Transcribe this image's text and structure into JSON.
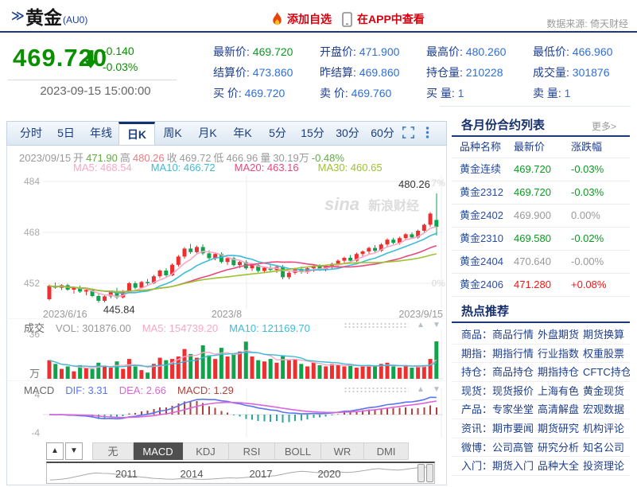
{
  "header": {
    "market_prefix": "≫",
    "title": "黄金",
    "symbol": "(AU0)",
    "add_watchlist": "添加自选",
    "view_in_app": "在APP中查看",
    "data_source": "数据来源: 倚天财经"
  },
  "quote": {
    "price": "469.720",
    "change": "-0.140",
    "change_pct": "-0.03%",
    "timestamp": "2023-09-15 15:00:00",
    "fields": [
      {
        "label": "最新价",
        "value": "469.720",
        "green": true
      },
      {
        "label": "开盘价",
        "value": "471.900"
      },
      {
        "label": "最高价",
        "value": "480.260"
      },
      {
        "label": "最低价",
        "value": "466.960"
      },
      {
        "label": "结算价",
        "value": "473.860"
      },
      {
        "label": "昨结算",
        "value": "469.860"
      },
      {
        "label": "持仓量",
        "value": "210228"
      },
      {
        "label": "成交量",
        "value": "301876"
      },
      {
        "label": "买 价",
        "value": "469.720"
      },
      {
        "label": "卖 价",
        "value": "469.760"
      },
      {
        "label": "买 量",
        "value": "1"
      },
      {
        "label": "卖 量",
        "value": "1"
      }
    ]
  },
  "chart_tabs": {
    "items": [
      "分时",
      "5日",
      "年线",
      "日K",
      "周K",
      "月K",
      "年K",
      "5分",
      "15分",
      "30分",
      "60分"
    ],
    "active": "日K"
  },
  "kline_info": {
    "segments": [
      {
        "t": "2023/09/15",
        "c": "#9a9a9a"
      },
      {
        "t": "开",
        "c": "#9a9a9a"
      },
      {
        "t": "471.90",
        "c": "#5fae3e"
      },
      {
        "t": "高",
        "c": "#9a9a9a"
      },
      {
        "t": "480.26",
        "c": "#f07a7a"
      },
      {
        "t": "收",
        "c": "#9a9a9a"
      },
      {
        "t": "469.72",
        "c": "#9a9a9a"
      },
      {
        "t": "低",
        "c": "#9a9a9a"
      },
      {
        "t": "466.96",
        "c": "#9a9a9a"
      },
      {
        "t": "量",
        "c": "#9a9a9a"
      },
      {
        "t": "30.19万",
        "c": "#9a9a9a"
      },
      {
        "t": "-0.48%",
        "c": "#5fae3e"
      }
    ],
    "ma_labels": [
      {
        "t": "MA5: 468.54",
        "c": "#f7a8c6"
      },
      {
        "t": "MA10: 466.72",
        "c": "#3dbcd8"
      },
      {
        "t": "MA20: 463.16",
        "c": "#e8487e"
      },
      {
        "t": "MA30: 460.65",
        "c": "#9cc22e"
      }
    ]
  },
  "chart_data": {
    "type": "candlestick",
    "title": "黄金(AU0) 日K",
    "y_ticks": [
      484,
      468,
      452
    ],
    "x_labels": [
      "2023/6/16",
      "2023/8",
      "2023/9/15"
    ],
    "right_axis_labels": [
      "7%",
      "0%"
    ],
    "high_label": "480.26",
    "low_label": "445.84",
    "watermark": "sina 新浪财经",
    "candles": [
      [
        447.0,
        451.6,
        446.6,
        451.2
      ],
      [
        451.2,
        452.2,
        450.2,
        450.6
      ],
      [
        450.6,
        451.8,
        449.9,
        451.4
      ],
      [
        451.4,
        451.9,
        449.6,
        450.0
      ],
      [
        450.0,
        451.0,
        448.8,
        450.6
      ],
      [
        450.6,
        451.2,
        449.0,
        449.4
      ],
      [
        449.4,
        450.4,
        448.2,
        449.9
      ],
      [
        449.9,
        450.3,
        447.6,
        448.0
      ],
      [
        448.0,
        448.6,
        445.84,
        446.5
      ],
      [
        446.5,
        448.3,
        446.0,
        447.9
      ],
      [
        447.9,
        449.6,
        447.3,
        449.2
      ],
      [
        449.2,
        450.6,
        447.0,
        447.6
      ],
      [
        447.6,
        449.9,
        447.2,
        449.5
      ],
      [
        449.5,
        452.4,
        449.0,
        452.0
      ],
      [
        452.0,
        452.6,
        450.1,
        450.6
      ],
      [
        450.6,
        452.8,
        450.2,
        452.4
      ],
      [
        452.4,
        453.4,
        451.4,
        452.0
      ],
      [
        452.0,
        454.6,
        451.8,
        454.2
      ],
      [
        454.2,
        456.4,
        453.6,
        456.0
      ],
      [
        456.0,
        456.8,
        454.0,
        454.5
      ],
      [
        454.5,
        458.2,
        454.2,
        457.8
      ],
      [
        457.8,
        460.9,
        457.2,
        460.4
      ],
      [
        460.4,
        463.4,
        459.8,
        462.9
      ],
      [
        462.9,
        464.4,
        461.2,
        461.8
      ],
      [
        461.8,
        463.9,
        461.0,
        463.4
      ],
      [
        463.4,
        464.2,
        460.9,
        461.4
      ],
      [
        461.4,
        462.4,
        459.4,
        459.9
      ],
      [
        459.9,
        461.6,
        459.2,
        461.2
      ],
      [
        461.2,
        461.8,
        458.2,
        458.7
      ],
      [
        458.7,
        460.3,
        457.7,
        459.9
      ],
      [
        459.9,
        460.4,
        457.2,
        457.7
      ],
      [
        457.7,
        459.1,
        456.7,
        458.7
      ],
      [
        458.7,
        459.2,
        456.2,
        456.7
      ],
      [
        456.7,
        458.1,
        455.9,
        457.7
      ],
      [
        457.7,
        458.2,
        455.4,
        455.9
      ],
      [
        455.9,
        457.3,
        455.1,
        456.9
      ],
      [
        456.9,
        457.8,
        455.5,
        456.2
      ],
      [
        456.2,
        457.6,
        455.2,
        457.2
      ],
      [
        457.2,
        457.7,
        453.3,
        453.9
      ],
      [
        453.9,
        455.7,
        453.3,
        455.3
      ],
      [
        455.3,
        456.9,
        454.7,
        456.5
      ],
      [
        456.5,
        457.3,
        455.0,
        455.5
      ],
      [
        455.5,
        457.1,
        455.0,
        456.7
      ],
      [
        456.7,
        457.9,
        455.6,
        457.5
      ],
      [
        457.5,
        458.0,
        455.9,
        456.4
      ],
      [
        456.4,
        457.9,
        455.8,
        457.5
      ],
      [
        457.5,
        458.5,
        456.4,
        458.1
      ],
      [
        458.1,
        459.5,
        457.3,
        459.1
      ],
      [
        459.1,
        460.4,
        458.0,
        460.0
      ],
      [
        460.0,
        460.9,
        458.6,
        459.1
      ],
      [
        459.1,
        461.6,
        458.8,
        461.2
      ],
      [
        461.2,
        462.4,
        460.2,
        462.0
      ],
      [
        462.0,
        463.5,
        461.2,
        463.1
      ],
      [
        463.1,
        464.0,
        461.7,
        462.2
      ],
      [
        462.2,
        464.6,
        461.9,
        464.2
      ],
      [
        464.2,
        466.1,
        463.6,
        465.7
      ],
      [
        465.7,
        466.3,
        464.2,
        464.7
      ],
      [
        464.7,
        466.6,
        464.1,
        466.2
      ],
      [
        466.2,
        467.8,
        465.5,
        467.4
      ],
      [
        467.4,
        468.0,
        465.9,
        466.4
      ],
      [
        466.4,
        468.9,
        466.0,
        468.5
      ],
      [
        468.5,
        470.8,
        467.9,
        470.4
      ],
      [
        470.4,
        474.4,
        469.8,
        473.9
      ],
      [
        471.9,
        480.26,
        466.96,
        469.72
      ]
    ],
    "volume_values": [
      15,
      12,
      8,
      10,
      6,
      11,
      9,
      8,
      13,
      10,
      9,
      14,
      8,
      16,
      10,
      7,
      5,
      12,
      17,
      15,
      16,
      18,
      24,
      20,
      17,
      27,
      19,
      16,
      25,
      18,
      20,
      22,
      30,
      18,
      15,
      14,
      16,
      13,
      19,
      15,
      16,
      12,
      10,
      13,
      11,
      10,
      12,
      11,
      10,
      11,
      9,
      10,
      11,
      10,
      12,
      13,
      10,
      9,
      10,
      9,
      10,
      11,
      16,
      30.19
    ]
  },
  "volume_pane": {
    "segments": [
      {
        "t": "成交",
        "c": "#666666"
      },
      {
        "t": "VOL: 301876.00",
        "c": "#999999"
      },
      {
        "t": "MA5: 154739.20",
        "c": "#f7a8c6"
      },
      {
        "t": "MA10: 121169.70",
        "c": "#3dbcd8"
      }
    ],
    "y_tick": "36",
    "unit": "万"
  },
  "macd_pane": {
    "segments": [
      {
        "t": "MACD",
        "c": "#666666"
      },
      {
        "t": "DIF: 3.31",
        "c": "#5b74f0"
      },
      {
        "t": "DEA: 2.66",
        "c": "#da66da"
      },
      {
        "t": "MACD: 1.29",
        "c": "#b0413a"
      }
    ],
    "y_ticks": [
      "4",
      "-4"
    ]
  },
  "indicator_tabs": {
    "items": [
      "无",
      "MACD",
      "KDJ",
      "RSI",
      "BOLL",
      "WR",
      "DMI"
    ],
    "active": "MACD"
  },
  "timeline": {
    "years": [
      "2011",
      "2014",
      "2017",
      "2020"
    ],
    "year_x": [
      100,
      182,
      269,
      355
    ],
    "spark": [
      18,
      20,
      24,
      30,
      38,
      46,
      55,
      60,
      58,
      57,
      54,
      48,
      44,
      40,
      36,
      33,
      28,
      26,
      24,
      23,
      25,
      27,
      25,
      23,
      22,
      24,
      26,
      29,
      31,
      29,
      32,
      35,
      37,
      39,
      41,
      44,
      52,
      60,
      66,
      70,
      68,
      64,
      62,
      65,
      68,
      66,
      63,
      65,
      70,
      76,
      83,
      86,
      82,
      79,
      77,
      81,
      87,
      91,
      94,
      97
    ]
  },
  "contracts": {
    "title": "各月份合约列表",
    "more": "更多>",
    "headers": [
      "品种名称",
      "最新价",
      "涨跌幅"
    ],
    "rows": [
      {
        "name": "黄金连续",
        "price": "469.720",
        "pct": "-0.03%",
        "state": "down"
      },
      {
        "name": "黄金2312",
        "price": "469.720",
        "pct": "-0.03%",
        "state": "down"
      },
      {
        "name": "黄金2402",
        "price": "469.900",
        "pct": "0.00%",
        "state": "flat"
      },
      {
        "name": "黄金2310",
        "price": "469.580",
        "pct": "-0.02%",
        "state": "down"
      },
      {
        "name": "黄金2404",
        "price": "470.640",
        "pct": "-0.00%",
        "state": "flat"
      },
      {
        "name": "黄金2406",
        "price": "471.280",
        "pct": "+0.08%",
        "state": "up"
      }
    ]
  },
  "hotspots": {
    "title": "热点推荐",
    "rows": [
      {
        "label": "商品",
        "links": [
          "商品行情",
          "外盘期货",
          "期货换算"
        ]
      },
      {
        "label": "期指",
        "links": [
          "期指行情",
          "行业指数",
          "权重股票"
        ]
      },
      {
        "label": "持仓",
        "links": [
          "商品持仓",
          "期指持仓",
          "CFTC持仓"
        ]
      },
      {
        "label": "现货",
        "links": [
          "现货报价",
          "上海有色",
          "黄金现货"
        ]
      },
      {
        "label": "产品",
        "links": [
          "专家坐堂",
          "高清解盘",
          "宏观数据"
        ]
      },
      {
        "label": "资讯",
        "links": [
          "期市要闻",
          "期货研究",
          "机构评论"
        ]
      },
      {
        "label": "微博",
        "links": [
          "公司高管",
          "研究分析",
          "知名公司"
        ]
      },
      {
        "label": "入门",
        "links": [
          "期货入门",
          "品种大全",
          "投资理论"
        ]
      }
    ]
  },
  "colors": {
    "up": "#ee2f2f",
    "down": "#11a24c",
    "ma5": "#f7a8c6",
    "ma10": "#3dbcd8",
    "ma20": "#e8487e",
    "ma30": "#9cc22e",
    "dif": "#5b74f0",
    "dea": "#da66da",
    "hist_up": "#b0413a",
    "hist_down": "#2aa79b",
    "grid": "#ececec",
    "axis_text": "#aaaaaa",
    "pct_text": "#e2e2e2",
    "watermark": "#dcdcdc",
    "accent_navy": "#1d3e8f",
    "quote_green": "#0a8f00",
    "alert_red": "#d7000f"
  }
}
